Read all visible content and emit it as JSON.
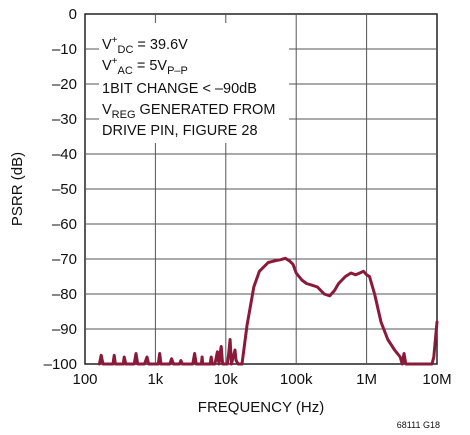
{
  "chart_data": {
    "type": "line",
    "xlabel": "FREQUENCY (Hz)",
    "ylabel": "PSRR (dB)",
    "x_scale": "log",
    "xlim": [
      100,
      10000000
    ],
    "ylim": [
      -100,
      0
    ],
    "x_ticks": [
      100,
      1000,
      10000,
      100000,
      1000000,
      10000000
    ],
    "x_tick_labels": [
      "100",
      "1k",
      "10k",
      "100k",
      "1M",
      "10M"
    ],
    "y_ticks": [
      0,
      -10,
      -20,
      -30,
      -40,
      -50,
      -60,
      -70,
      -80,
      -90,
      -100
    ],
    "y_tick_labels": [
      "0",
      "–10",
      "–20",
      "–30",
      "–40",
      "–50",
      "–60",
      "–70",
      "–80",
      "–90",
      "–100"
    ],
    "grid": true,
    "figure_id": "68111 G18",
    "annotation": {
      "line1_base": "V",
      "line1_sup": "+",
      "line1_sub": "DC",
      "line1_rest": " = 39.6V",
      "line2_base": "V",
      "line2_sup": "+",
      "line2_sub": "AC",
      "line2_rest": " = 5V",
      "line2_sub2": "P–P",
      "line3": "1BIT CHANGE < –90dB",
      "line4_base": "V",
      "line4_sub": "REG",
      "line4_rest": " GENERATED FROM",
      "line5": "DRIVE PIN, FIGURE 28"
    },
    "series": [
      {
        "color": "#8b1a3a",
        "points": [
          [
            160,
            -100
          ],
          [
            170,
            -97.5
          ],
          [
            180,
            -100
          ],
          [
            250,
            -100
          ],
          [
            260,
            -97.5
          ],
          [
            270,
            -100
          ],
          [
            350,
            -100
          ],
          [
            360,
            -98
          ],
          [
            380,
            -100
          ],
          [
            500,
            -100
          ],
          [
            530,
            -97
          ],
          [
            560,
            -100
          ],
          [
            700,
            -100
          ],
          [
            760,
            -98
          ],
          [
            800,
            -100
          ],
          [
            1100,
            -100
          ],
          [
            1150,
            -97
          ],
          [
            1200,
            -100
          ],
          [
            1600,
            -100
          ],
          [
            1700,
            -98.5
          ],
          [
            1800,
            -100
          ],
          [
            2200,
            -100
          ],
          [
            2300,
            -99
          ],
          [
            2400,
            -100
          ],
          [
            3400,
            -100
          ],
          [
            3600,
            -97
          ],
          [
            3800,
            -100
          ],
          [
            4500,
            -100
          ],
          [
            4600,
            -98
          ],
          [
            4700,
            -100
          ],
          [
            6000,
            -100
          ],
          [
            6200,
            -98
          ],
          [
            6400,
            -100
          ],
          [
            7000,
            -100
          ],
          [
            7600,
            -96.5
          ],
          [
            8000,
            -100
          ],
          [
            8300,
            -97
          ],
          [
            8600,
            -95
          ],
          [
            9000,
            -100
          ],
          [
            10500,
            -100
          ],
          [
            11000,
            -97
          ],
          [
            11500,
            -93
          ],
          [
            12000,
            -100
          ],
          [
            13500,
            -96
          ],
          [
            14000,
            -99
          ],
          [
            15000,
            -100
          ],
          [
            17000,
            -100
          ],
          [
            20000,
            -89
          ],
          [
            25000,
            -78
          ],
          [
            30000,
            -73.5
          ],
          [
            40000,
            -71
          ],
          [
            50000,
            -70.5
          ],
          [
            60000,
            -70.2
          ],
          [
            70000,
            -69.8
          ],
          [
            80000,
            -70.5
          ],
          [
            90000,
            -71.5
          ],
          [
            100000,
            -74
          ],
          [
            120000,
            -76
          ],
          [
            140000,
            -77
          ],
          [
            170000,
            -77.5
          ],
          [
            200000,
            -78
          ],
          [
            250000,
            -80
          ],
          [
            300000,
            -80.5
          ],
          [
            350000,
            -79
          ],
          [
            400000,
            -77
          ],
          [
            500000,
            -75
          ],
          [
            600000,
            -74
          ],
          [
            700000,
            -74.5
          ],
          [
            800000,
            -74
          ],
          [
            900000,
            -73.5
          ],
          [
            1000000,
            -74.5
          ],
          [
            1100000,
            -75
          ],
          [
            1300000,
            -80
          ],
          [
            1600000,
            -88
          ],
          [
            2000000,
            -93
          ],
          [
            2500000,
            -96
          ],
          [
            3000000,
            -98
          ],
          [
            3200000,
            -100
          ],
          [
            3400000,
            -97
          ],
          [
            3600000,
            -100
          ],
          [
            8500000,
            -100
          ],
          [
            9000000,
            -98
          ],
          [
            10000000,
            -88
          ]
        ]
      }
    ]
  }
}
